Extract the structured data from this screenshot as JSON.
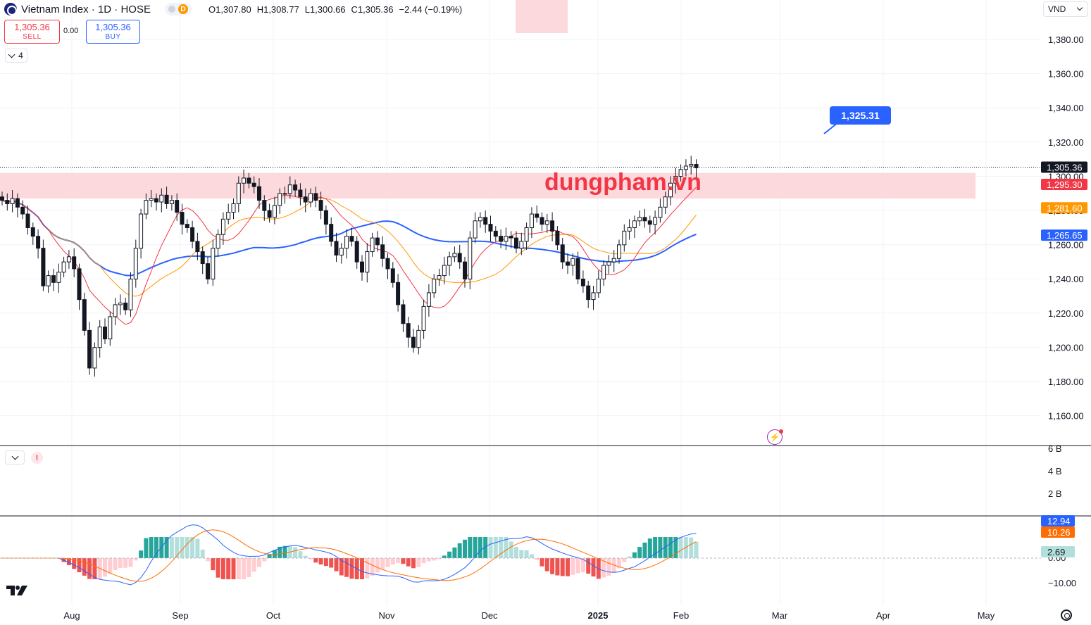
{
  "header": {
    "title": "Vietnam Index · 1D · HOSE",
    "badge_letter": "D",
    "ohlc": [
      {
        "k": "O",
        "v": "1,307.80"
      },
      {
        "k": "H",
        "v": "1,308.77"
      },
      {
        "k": "L",
        "v": "1,300.66"
      },
      {
        "k": "C",
        "v": "1,305.36"
      },
      {
        "k": "",
        "v": "−2.44 (−0.19%)"
      }
    ]
  },
  "trade": {
    "sell_price": "1,305.36",
    "sell_label": "SELL",
    "spread": "0.00",
    "buy_price": "1,305.36",
    "buy_label": "BUY"
  },
  "indicator_count": "4",
  "currency": "VND",
  "watermark": "dungpham.vn",
  "target_label": "1,325.31",
  "flash_icon": "lightning-icon",
  "colors": {
    "up": "#131722",
    "down": "#131722",
    "ma_fast": "#f23645",
    "ma_mid": "#ff9800",
    "ma_slow": "#2962ff",
    "zone": "#fcd9dd",
    "macd_pos_strong": "#26a69a",
    "macd_pos_weak": "#b2dfdb",
    "macd_neg_strong": "#ef5350",
    "macd_neg_weak": "#ffcdd2"
  },
  "chart_data": {
    "type": "candlestick",
    "price_axis": {
      "ticks": [
        "1,380.00",
        "1,360.00",
        "1,340.00",
        "1,320.00",
        "1,300.00",
        "1,280.00",
        "1,260.00",
        "1,240.00",
        "1,220.00",
        "1,200.00",
        "1,180.00",
        "1,160.00"
      ],
      "ylim": [
        1152,
        1392
      ]
    },
    "price_labels": [
      {
        "value": 1305.36,
        "text": "1,305.36",
        "color": "#131722"
      },
      {
        "value": 1295.3,
        "text": "1,295.30",
        "color": "#f23645"
      },
      {
        "value": 1281.6,
        "text": "1,281.60",
        "color": "#ff9800"
      },
      {
        "value": 1265.65,
        "text": "1,265.65",
        "color": "#2962ff"
      }
    ],
    "hidden_tick": "1,300.00",
    "resistance_zone": [
      1287,
      1302
    ],
    "target_value": 1325.31,
    "volume_axis": {
      "ticks": [
        "6 B",
        "4 B",
        "2 B"
      ]
    },
    "macd_axis": {
      "ticks": [
        "0.00",
        "−10.00"
      ]
    },
    "macd_labels": [
      {
        "text": "12.94",
        "color": "#2962ff"
      },
      {
        "text": "10.26",
        "color": "#ff6d00"
      },
      {
        "text": "2.69",
        "color": "#b2dfdb"
      }
    ],
    "months": [
      "Aug",
      "Sep",
      "Oct",
      "Nov",
      "Dec",
      "2025",
      "Feb",
      "Mar",
      "Apr",
      "May"
    ],
    "month_days": [
      24,
      58,
      90,
      124,
      157,
      193,
      222,
      255,
      287,
      319
    ],
    "closes": [
      1286,
      1284,
      1287,
      1282,
      1278,
      1270,
      1265,
      1258,
      1236,
      1242,
      1238,
      1244,
      1250,
      1253,
      1246,
      1228,
      1210,
      1188,
      1200,
      1212,
      1205,
      1218,
      1225,
      1226,
      1222,
      1240,
      1258,
      1278,
      1286,
      1287,
      1285,
      1289,
      1284,
      1286,
      1279,
      1272,
      1270,
      1262,
      1256,
      1249,
      1240,
      1258,
      1266,
      1275,
      1279,
      1284,
      1296,
      1299,
      1296,
      1294,
      1286,
      1280,
      1276,
      1283,
      1290,
      1290,
      1295,
      1292,
      1288,
      1285,
      1290,
      1286,
      1280,
      1272,
      1262,
      1254,
      1258,
      1265,
      1262,
      1250,
      1244,
      1256,
      1264,
      1260,
      1252,
      1246,
      1238,
      1225,
      1214,
      1206,
      1200,
      1210,
      1224,
      1232,
      1240,
      1242,
      1248,
      1253,
      1255,
      1250,
      1240,
      1264,
      1274,
      1276,
      1272,
      1268,
      1265,
      1262,
      1265,
      1264,
      1258,
      1262,
      1270,
      1278,
      1276,
      1272,
      1274,
      1268,
      1260,
      1250,
      1248,
      1252,
      1240,
      1236,
      1228,
      1232,
      1240,
      1248,
      1250,
      1252,
      1260,
      1268,
      1270,
      1274,
      1276,
      1274,
      1272,
      1276,
      1282,
      1288,
      1296,
      1300,
      1304,
      1306,
      1307,
      1305
    ],
    "ma_fast_end": 1295.3,
    "ma_mid_end": 1281.6,
    "ma_slow_end": 1265.65
  }
}
